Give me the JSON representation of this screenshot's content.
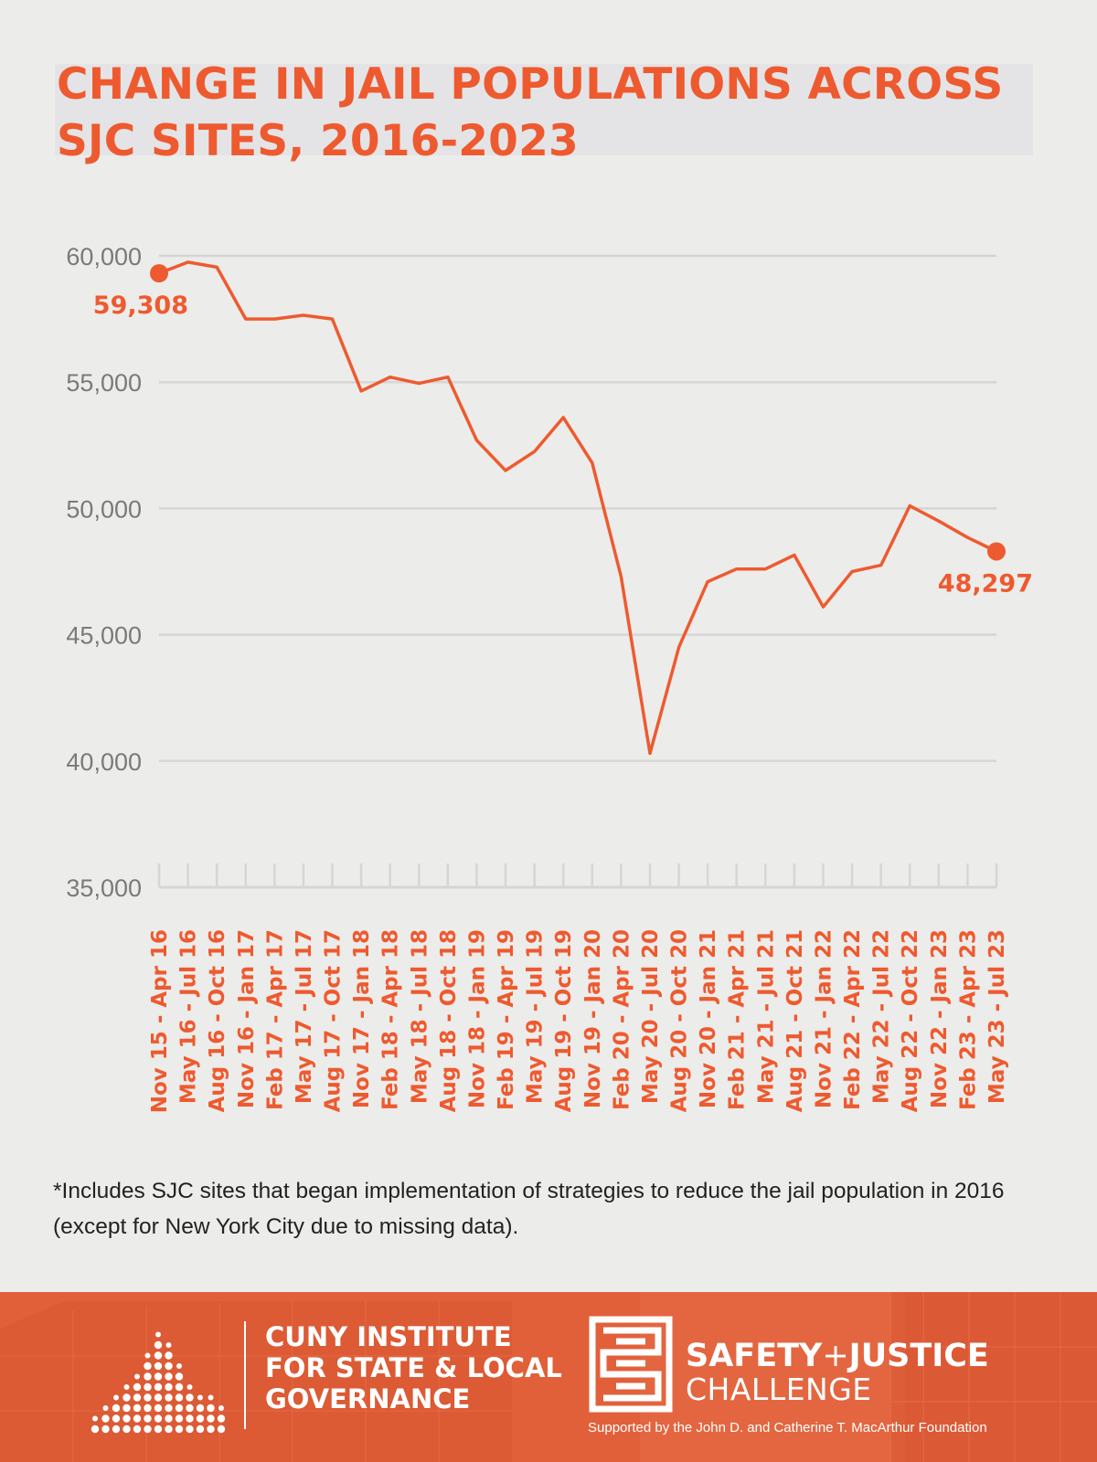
{
  "page": {
    "title_line1": "CHANGE IN JAIL POPULATIONS ACROSS",
    "title_line2": "SJC SITES, 2016-2023",
    "note": "*Includes SJC sites that began implementation of strategies to reduce the jail population in 2016 (except for New York City due to missing data)."
  },
  "colors": {
    "accent": "#ee5a2f",
    "background": "#ececea",
    "gridline": "#d6d6d6",
    "axis_text": "#7a7a7a",
    "footer": "#e1603a"
  },
  "chart_data": {
    "type": "line",
    "title": "CHANGE IN JAIL POPULATIONS ACROSS SJC SITES, 2016-2023",
    "xlabel": "",
    "ylabel": "",
    "ylim": [
      35000,
      60000
    ],
    "yticks": [
      60000,
      55000,
      50000,
      45000,
      40000,
      35000
    ],
    "ytick_labels": [
      "60,000",
      "55,000",
      "50,000",
      "45,000",
      "40,000",
      "35,000"
    ],
    "grid": true,
    "legend": "none",
    "categories": [
      "Nov 15 - Apr 16",
      "May 16 - Jul 16",
      "Aug 16 - Oct 16",
      "Nov 16 - Jan 17",
      "Feb 17 - Apr 17",
      "May 17 - Jul 17",
      "Aug 17 - Oct 17",
      "Nov 17 - Jan 18",
      "Feb 18 - Apr 18",
      "May 18 - Jul 18",
      "Aug 18 - Oct 18",
      "Nov 18 - Jan 19",
      "Feb 19 - Apr 19",
      "May 19 - Jul 19",
      "Aug 19 - Oct 19",
      "Nov 19 - Jan 20",
      "Feb 20 - Apr 20",
      "May 20 - Jul 20",
      "Aug 20 - Oct 20",
      "Nov 20 - Jan 21",
      "Feb 21 - Apr 21",
      "May 21 - Jul 21",
      "Aug 21 - Oct 21",
      "Nov 21 - Jan 22",
      "Feb 22 - Apr 22",
      "May 22 - Jul 22",
      "Aug 22 - Oct 22",
      "Nov 22 - Jan 23",
      "Feb 23 - Apr 23",
      "May 23 - Jul 23"
    ],
    "values": [
      59308,
      59750,
      59550,
      57500,
      57500,
      57650,
      57500,
      54650,
      55200,
      54950,
      55200,
      52700,
      51500,
      52250,
      53600,
      51800,
      47300,
      40300,
      44500,
      47100,
      47600,
      47600,
      48150,
      46100,
      47500,
      47750,
      50100,
      49500,
      48850,
      48297
    ],
    "data_labels": [
      {
        "index": 0,
        "text": "59,308"
      },
      {
        "index": 29,
        "text": "48,297"
      }
    ]
  },
  "footer": {
    "cuny_line1": "CUNY INSTITUTE",
    "cuny_line2": "FOR STATE & LOCAL",
    "cuny_line3": "GOVERNANCE",
    "sjc_word1": "SAFETY",
    "sjc_plus": "+",
    "sjc_word2": "JUSTICE",
    "sjc_line2": "CHALLENGE",
    "sjc_support": "Supported by the John D. and Catherine T. MacArthur Foundation"
  }
}
